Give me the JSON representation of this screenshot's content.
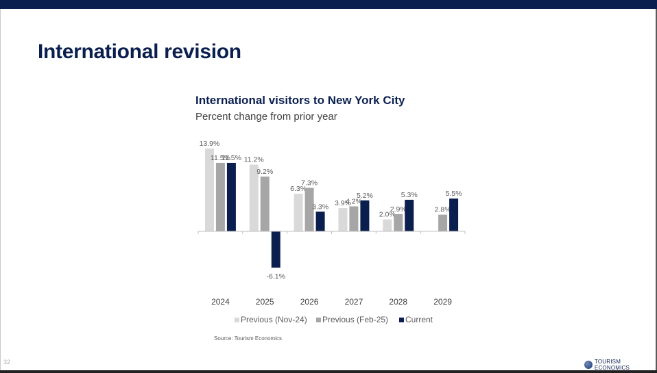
{
  "slide": {
    "title": "International revision",
    "page_number": "32",
    "logo_text": "TOURISM ECONOMICS",
    "source": "Source: Tourism Economics"
  },
  "colors": {
    "navy": "#0b1f4f",
    "series": [
      "#d9d9d9",
      "#a6a6a6",
      "#0b1f4f"
    ],
    "label": "#595959"
  },
  "chart_data": {
    "type": "bar",
    "title": "International visitors to New York City",
    "subtitle": "Percent change from prior year",
    "xlabel": "",
    "ylabel": "",
    "categories": [
      "2024",
      "2025",
      "2026",
      "2027",
      "2028",
      "2029"
    ],
    "series": [
      {
        "name": "Previous (Nov-24)",
        "values": [
          13.9,
          11.2,
          6.3,
          3.9,
          2.0,
          null
        ],
        "labels": [
          "13.9%",
          "11.2%",
          "6.3%",
          "3.9%",
          "2.0%",
          null
        ]
      },
      {
        "name": "Previous (Feb-25)",
        "values": [
          11.5,
          9.2,
          7.3,
          4.2,
          2.9,
          2.8
        ],
        "labels": [
          "11.5%",
          "9.2%",
          "7.3%",
          "4.2%",
          "2.9%",
          "2.8%"
        ]
      },
      {
        "name": "Current",
        "values": [
          11.5,
          -6.1,
          3.3,
          5.2,
          5.3,
          5.5
        ],
        "labels": [
          "11.5%",
          "-6.1%",
          "3.3%",
          "5.2%",
          "5.3%",
          "5.5%"
        ]
      }
    ],
    "ylim": [
      -6.1,
      13.9
    ],
    "grid": false,
    "legend": "bottom"
  }
}
